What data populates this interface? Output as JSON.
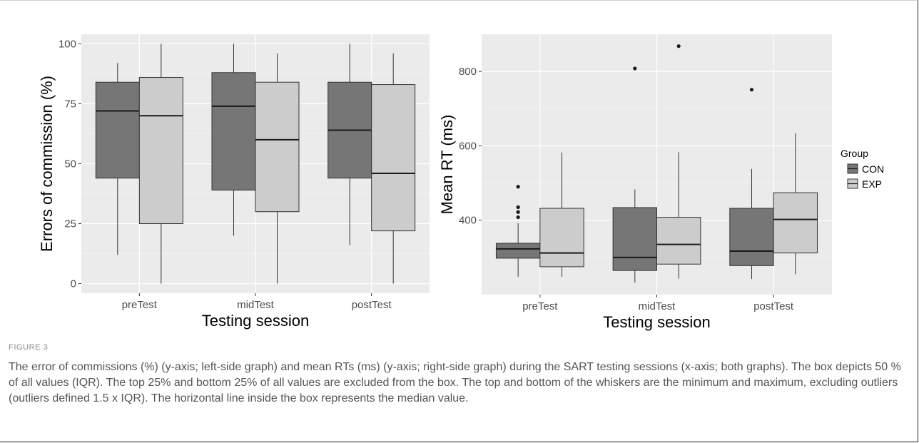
{
  "chart_data": [
    {
      "type": "box",
      "xlabel": "Testing session",
      "ylabel": "Errors of commission (%)",
      "categories": [
        "preTest",
        "midTest",
        "postTest"
      ],
      "yticks": [
        0,
        25,
        50,
        75,
        100
      ],
      "ylim": [
        -4,
        104
      ],
      "grid": true,
      "series": [
        {
          "name": "CON",
          "color": "#767676",
          "boxes": [
            {
              "min": 12,
              "q1": 44,
              "median": 72,
              "q3": 84,
              "max": 92,
              "outliers": []
            },
            {
              "min": 20,
              "q1": 39,
              "median": 74,
              "q3": 88,
              "max": 100,
              "outliers": []
            },
            {
              "min": 16,
              "q1": 44,
              "median": 64,
              "q3": 84,
              "max": 100,
              "outliers": []
            }
          ]
        },
        {
          "name": "EXP",
          "color": "#cccccc",
          "boxes": [
            {
              "min": 0,
              "q1": 25,
              "median": 70,
              "q3": 86,
              "max": 100,
              "outliers": []
            },
            {
              "min": 0,
              "q1": 30,
              "median": 60,
              "q3": 84,
              "max": 96,
              "outliers": []
            },
            {
              "min": 0,
              "q1": 22,
              "median": 46,
              "q3": 83,
              "max": 96,
              "outliers": []
            }
          ]
        }
      ]
    },
    {
      "type": "box",
      "xlabel": "Testing session",
      "ylabel": "Mean RT (ms)",
      "categories": [
        "preTest",
        "midTest",
        "postTest"
      ],
      "yticks": [
        400,
        600,
        800
      ],
      "ylim": [
        200,
        900
      ],
      "grid": true,
      "legend_title": "Group",
      "legend_position": "right",
      "series": [
        {
          "name": "CON",
          "color": "#767676",
          "boxes": [
            {
              "min": 248,
              "q1": 298,
              "median": 323,
              "q3": 338,
              "max": 392,
              "outliers": [
                408,
                422,
                435,
                490
              ]
            },
            {
              "min": 232,
              "q1": 265,
              "median": 300,
              "q3": 434,
              "max": 483,
              "outliers": [
                808
              ]
            },
            {
              "min": 242,
              "q1": 278,
              "median": 317,
              "q3": 432,
              "max": 538,
              "outliers": [
                751
              ]
            }
          ]
        },
        {
          "name": "EXP",
          "color": "#cccccc",
          "boxes": [
            {
              "min": 248,
              "q1": 275,
              "median": 312,
              "q3": 432,
              "max": 582,
              "outliers": []
            },
            {
              "min": 243,
              "q1": 282,
              "median": 335,
              "q3": 408,
              "max": 583,
              "outliers": [
                868
              ]
            },
            {
              "min": 255,
              "q1": 312,
              "median": 402,
              "q3": 474,
              "max": 634,
              "outliers": []
            }
          ]
        }
      ]
    }
  ],
  "figure": {
    "label": "FIGURE 3",
    "caption": "The error of commissions (%) (y-axis; left-side graph) and mean RTs (ms) (y-axis; right-side graph) during the SART testing sessions (x-axis; both graphs). The box depicts 50 % of all values (IQR). The top 25% and bottom 25% of all values are excluded from the box. The top and bottom of the whiskers are the minimum and maximum, excluding outliers (outliers defined 1.5 x IQR). The horizontal line inside the box represents the median value."
  }
}
